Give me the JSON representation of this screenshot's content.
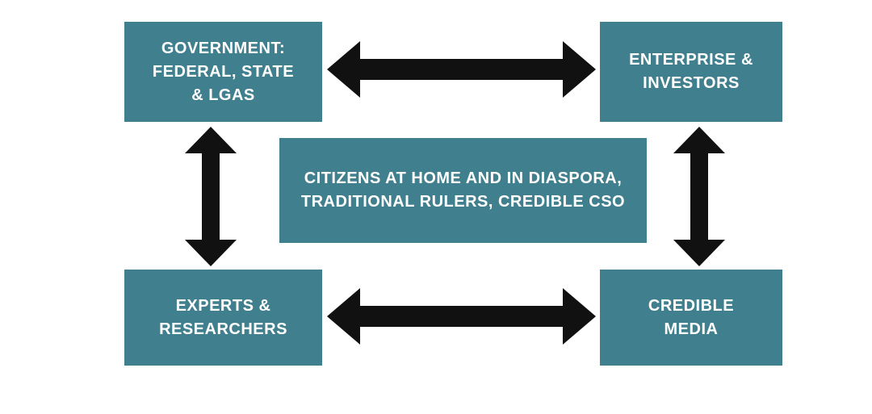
{
  "nodes": {
    "government": {
      "label": "GOVERNMENT:\nFEDERAL, STATE\n& LGAS"
    },
    "enterprise": {
      "label": "ENTERPRISE &\nINVESTORS"
    },
    "experts": {
      "label": "EXPERTS &\nRESEARCHERS"
    },
    "media": {
      "label": "CREDIBLE\nMEDIA"
    },
    "citizens": {
      "label": "CITIZENS AT HOME AND IN DIASPORA,\nTRADITIONAL RULERS, CREDIBLE CSO"
    }
  },
  "connections": [
    {
      "from": "government",
      "to": "enterprise",
      "direction": "bidirectional"
    },
    {
      "from": "experts",
      "to": "media",
      "direction": "bidirectional"
    },
    {
      "from": "government",
      "to": "experts",
      "direction": "bidirectional"
    },
    {
      "from": "enterprise",
      "to": "media",
      "direction": "bidirectional"
    }
  ],
  "colors": {
    "box_fill": "#3f7f8e",
    "box_text": "#ffffff",
    "arrow": "#111111",
    "background": "#ffffff"
  }
}
